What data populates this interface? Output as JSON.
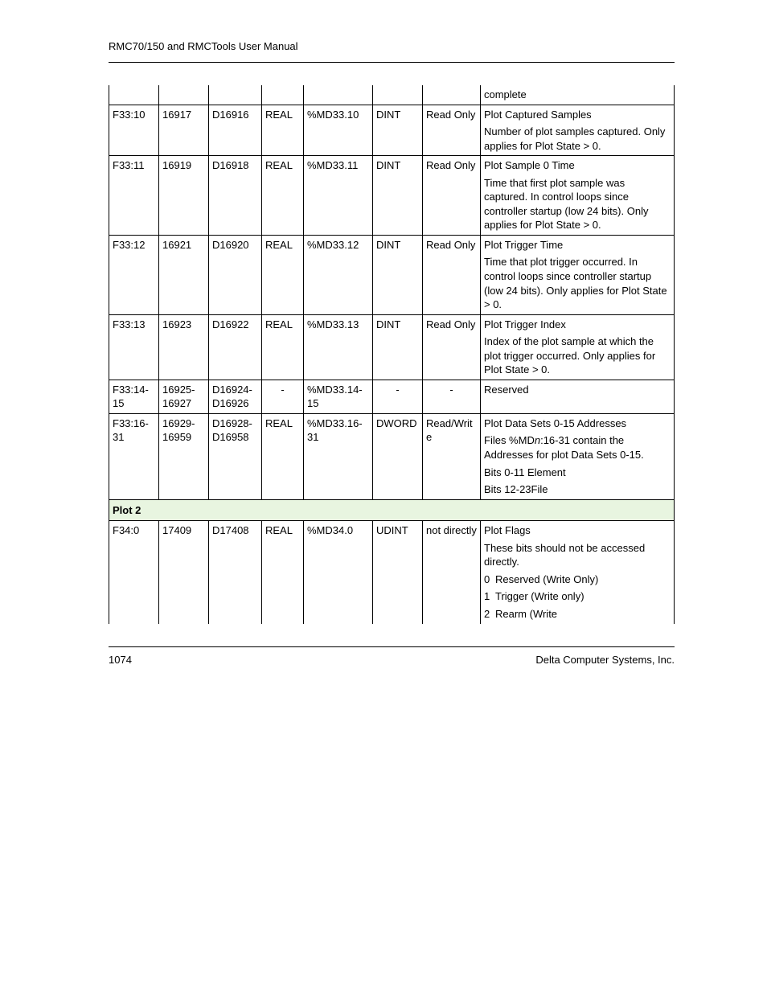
{
  "header": "RMC70/150 and RMCTools User Manual",
  "footer": {
    "page": "1074",
    "company": "Delta Computer Systems, Inc."
  },
  "colors": {
    "section_bg": "#e8f5e0",
    "border": "#000000",
    "text": "#000000",
    "background": "#ffffff"
  },
  "rows": [
    {
      "cells": [
        "",
        "",
        "",
        "",
        "",
        "",
        "",
        ""
      ],
      "desc_paras": [
        "complete"
      ],
      "partial_top": true
    },
    {
      "cells": [
        "F33:10",
        "16917",
        "D16916",
        "REAL",
        "%MD33.10",
        "DINT",
        "Read Only",
        ""
      ],
      "desc_paras": [
        "Plot Captured Samples",
        "Number of plot samples captured. Only applies for Plot State > 0."
      ]
    },
    {
      "cells": [
        "F33:11",
        "16919",
        "D16918",
        "REAL",
        "%MD33.11",
        "DINT",
        "Read Only",
        ""
      ],
      "desc_paras": [
        "Plot Sample 0 Time",
        "Time that first plot sample was captured. In control loops since controller startup (low 24 bits). Only applies for Plot State > 0."
      ]
    },
    {
      "cells": [
        "F33:12",
        "16921",
        "D16920",
        "REAL",
        "%MD33.12",
        "DINT",
        "Read Only",
        ""
      ],
      "desc_paras": [
        "Plot Trigger Time",
        "Time that plot trigger occurred. In control loops since controller startup (low 24 bits). Only applies for Plot State > 0."
      ]
    },
    {
      "cells": [
        "F33:13",
        "16923",
        "D16922",
        "REAL",
        "%MD33.13",
        "DINT",
        "Read Only",
        ""
      ],
      "desc_paras": [
        "Plot Trigger Index",
        "Index of the plot sample at which the plot trigger occurred. Only applies for Plot State > 0."
      ]
    },
    {
      "cells": [
        "F33:14-15",
        "16925-16927",
        "D16924-D16926",
        "-",
        "%MD33.14-15",
        "-",
        "-",
        ""
      ],
      "center_cols": [
        3,
        5,
        6
      ],
      "desc_paras": [
        "Reserved"
      ]
    },
    {
      "cells": [
        "F33:16-31",
        "16929-16959",
        "D16928-D16958",
        "REAL",
        "%MD33.16-31",
        "DWORD",
        "Read/Write",
        ""
      ],
      "desc_paras": [
        "Plot Data Sets 0-15 Addresses",
        "Files %MD<i>n</i>:16-31 contain the Addresses for plot Data Sets 0-15.",
        "Bits 0-11  Element",
        "Bits 12-23File"
      ]
    },
    {
      "section": "Plot 2"
    },
    {
      "cells": [
        "F34:0",
        "17409",
        "D17408",
        "REAL",
        "%MD34.0",
        "UDINT",
        "not directly",
        ""
      ],
      "desc_paras": [
        "Plot Flags",
        "These bits should not be accessed directly."
      ],
      "desc_list": [
        {
          "n": "0",
          "t": "Reserved (Write Only)"
        },
        {
          "n": "1",
          "t": "Trigger (Write only)"
        },
        {
          "n": "2",
          "t": "Rearm (Write"
        }
      ],
      "partial_bottom": true
    }
  ]
}
